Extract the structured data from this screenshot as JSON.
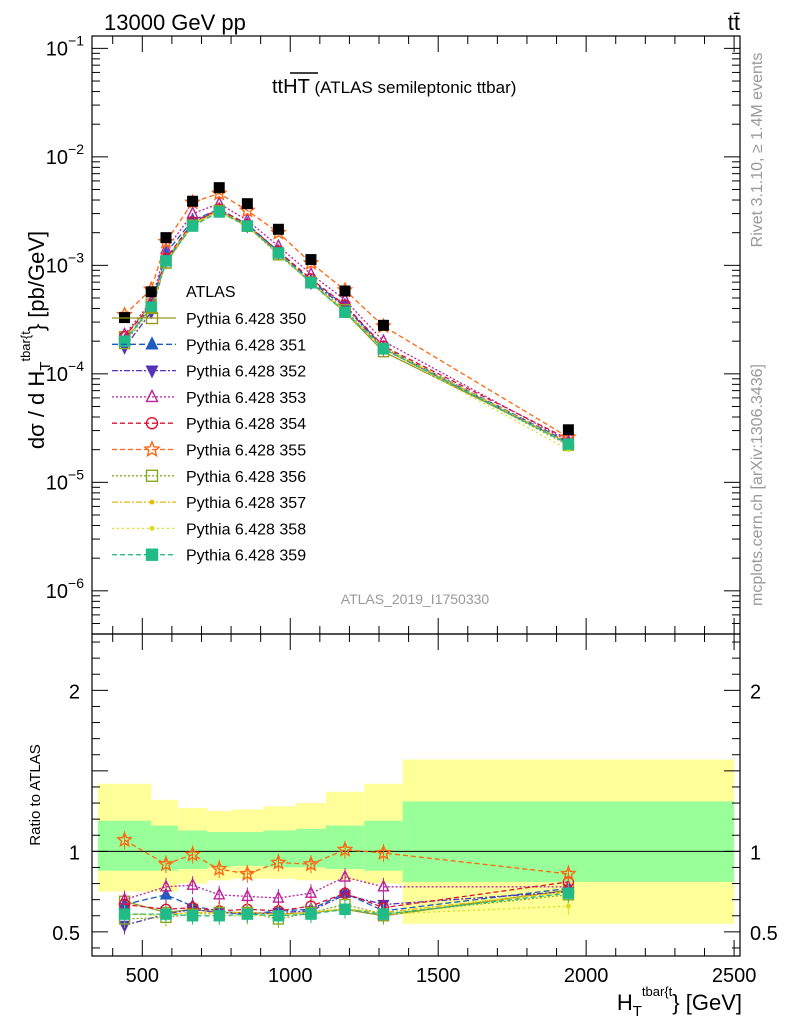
{
  "header": {
    "beam": "13000 GeV pp",
    "process": "tt̄",
    "title_main": "tt",
    "title_over": "HT",
    "title_rest": " (ATLAS semileptonic ttbar)",
    "analysis_id": "ATLAS_2019_I1750330",
    "side_top": "Rivet 3.1.10, ≥ 1.4M events",
    "side_bottom": "mcplots.cern.ch [arXiv:1306.3436]"
  },
  "colors": {
    "data": "#000000",
    "band_outer": "#ffff99",
    "band_inner": "#99ff99"
  },
  "chart_data": [
    {
      "type": "line",
      "panel": "main",
      "ylabel_main": "dσ / d H",
      "ylabel_sup": "tbar{t",
      "ylabel_sub": "T",
      "ylabel_unit": "} [pb/GeV]",
      "yscale": "log",
      "ylim": [
        4e-07,
        0.13
      ],
      "xlim": [
        330,
        2520
      ],
      "ytick_labels": [
        {
          "value": 1e-06,
          "base": "10",
          "exp": "−6"
        },
        {
          "value": 1e-05,
          "base": "10",
          "exp": "−5"
        },
        {
          "value": 0.0001,
          "base": "10",
          "exp": "−4"
        },
        {
          "value": 0.001,
          "base": "10",
          "exp": "−3"
        },
        {
          "value": 0.01,
          "base": "10",
          "exp": "−2"
        },
        {
          "value": 0.1,
          "base": "10",
          "exp": "−1"
        }
      ],
      "legend_position": "center-left",
      "x": [
        440,
        530,
        580,
        670,
        760,
        855,
        960,
        1070,
        1185,
        1315,
        1940
      ],
      "data": {
        "name": "ATLAS",
        "values": [
          0.00033,
          0.00057,
          0.0018,
          0.0039,
          0.0052,
          0.0037,
          0.00215,
          0.00113,
          0.00058,
          0.00028,
          3.05e-05
        ]
      },
      "series": [
        {
          "name": "Pythia 6.428 350",
          "color": "#99991f",
          "dash": "solid",
          "marker": "square-open",
          "values": [
            0.00022,
            0.00044,
            0.00105,
            0.0024,
            0.0032,
            0.0023,
            0.0013,
            0.00069,
            0.00037,
            0.00016,
            2.3e-05
          ]
        },
        {
          "name": "Pythia 6.428 351",
          "color": "#1f5cbf",
          "dash": "6,3",
          "marker": "triangle-up",
          "values": [
            0.0002,
            0.00042,
            0.0013,
            0.0026,
            0.0033,
            0.0024,
            0.00135,
            0.00072,
            0.00043,
            0.000175,
            2.35e-05
          ]
        },
        {
          "name": "Pythia 6.428 352",
          "color": "#5533bb",
          "dash": "6,2,2,2",
          "marker": "triangle-down",
          "values": [
            0.000175,
            0.00037,
            0.0011,
            0.0025,
            0.0032,
            0.0023,
            0.0013,
            0.00069,
            0.00042,
            0.00017,
            2.3e-05
          ]
        },
        {
          "name": "Pythia 6.428 353",
          "color": "#bb2299",
          "dash": "2,2",
          "marker": "triangle-open",
          "values": [
            0.00023,
            0.00046,
            0.0014,
            0.003,
            0.0037,
            0.0026,
            0.0015,
            0.00083,
            0.00048,
            0.0002,
            2.4e-05
          ]
        },
        {
          "name": "Pythia 6.428 354",
          "color": "#dd1133",
          "dash": "5,3",
          "marker": "circle-open",
          "values": [
            0.00022,
            0.00043,
            0.00115,
            0.0025,
            0.0033,
            0.00235,
            0.00135,
            0.00075,
            0.00043,
            0.00018,
            2.5e-05
          ]
        },
        {
          "name": "Pythia 6.428 355",
          "color": "#ff6611",
          "dash": "5,3",
          "marker": "star-open",
          "values": [
            0.00035,
            0.0006,
            0.00165,
            0.0038,
            0.0046,
            0.0032,
            0.002,
            0.00105,
            0.00059,
            0.000275,
            2.6e-05
          ]
        },
        {
          "name": "Pythia 6.428 356",
          "color": "#88aa22",
          "dash": "2,2",
          "marker": "square-open",
          "values": [
            0.00019,
            0.0004,
            0.00105,
            0.00235,
            0.0032,
            0.0023,
            0.00125,
            0.0007,
            0.00039,
            0.00017,
            2.2e-05
          ]
        },
        {
          "name": "Pythia 6.428 357",
          "color": "#e6bb11",
          "dash": "6,2,2,2",
          "marker": "dot",
          "values": [
            0.0002,
            0.00041,
            0.0011,
            0.0024,
            0.0032,
            0.0023,
            0.0013,
            0.0007,
            0.00037,
            0.000175,
            2.3e-05
          ]
        },
        {
          "name": "Pythia 6.428 358",
          "color": "#dddd22",
          "dash": "2,3",
          "marker": "dot",
          "values": [
            0.0002,
            0.0004,
            0.0011,
            0.0024,
            0.0031,
            0.00225,
            0.0013,
            0.0007,
            0.00038,
            0.00017,
            2e-05
          ]
        },
        {
          "name": "Pythia 6.428 359",
          "color": "#22bb88",
          "dash": "5,3",
          "marker": "square",
          "values": [
            0.0002,
            0.00041,
            0.0011,
            0.0023,
            0.0031,
            0.0023,
            0.0013,
            0.00069,
            0.00037,
            0.00017,
            2.25e-05
          ]
        }
      ]
    },
    {
      "type": "line",
      "panel": "ratio",
      "ylabel": "Ratio to ATLAS",
      "ylim": [
        0.35,
        2.35
      ],
      "xlim": [
        330,
        2520
      ],
      "yticks": [
        0.5,
        1,
        2
      ],
      "ytick_labels": [
        "0.5",
        "1",
        "2"
      ],
      "xticks": [
        500,
        1000,
        1500,
        2000,
        2500
      ],
      "xtick_labels": [
        "500",
        "1000",
        "1500",
        "2000",
        "2500"
      ],
      "xlabel_main": "H",
      "xlabel_sup": "tbar{t",
      "xlabel_sub": "T",
      "xlabel_unit": "} [GeV]",
      "bands": {
        "edges": [
          350,
          530,
          620,
          720,
          800,
          910,
          1020,
          1120,
          1250,
          1380,
          2500
        ],
        "outer_low": [
          0.75,
          0.75,
          0.8,
          0.82,
          0.83,
          0.83,
          0.82,
          0.82,
          0.8,
          0.55
        ],
        "outer_high": [
          1.42,
          1.32,
          1.27,
          1.25,
          1.26,
          1.28,
          1.3,
          1.37,
          1.42,
          1.57
        ],
        "inner_low": [
          0.88,
          0.88,
          0.89,
          0.9,
          0.91,
          0.9,
          0.9,
          0.89,
          0.88,
          0.81
        ],
        "inner_high": [
          1.19,
          1.16,
          1.13,
          1.12,
          1.12,
          1.13,
          1.14,
          1.16,
          1.19,
          1.31
        ]
      },
      "x": [
        440,
        580,
        670,
        760,
        855,
        960,
        1070,
        1185,
        1315,
        1940
      ],
      "series": [
        {
          "name": "Pythia 6.428 350",
          "values": [
            0.69,
            0.62,
            0.64,
            0.62,
            0.62,
            0.61,
            0.62,
            0.64,
            0.6,
            0.76
          ]
        },
        {
          "name": "Pythia 6.428 351",
          "values": [
            0.67,
            0.73,
            0.66,
            0.63,
            0.61,
            0.63,
            0.64,
            0.74,
            0.63,
            0.77
          ]
        },
        {
          "name": "Pythia 6.428 352",
          "values": [
            0.54,
            0.61,
            0.64,
            0.62,
            0.61,
            0.62,
            0.63,
            0.73,
            0.67,
            0.75
          ]
        },
        {
          "name": "Pythia 6.428 353",
          "values": [
            0.7,
            0.78,
            0.79,
            0.73,
            0.72,
            0.71,
            0.74,
            0.84,
            0.78,
            0.78
          ]
        },
        {
          "name": "Pythia 6.428 354",
          "values": [
            0.67,
            0.64,
            0.65,
            0.63,
            0.64,
            0.63,
            0.66,
            0.74,
            0.65,
            0.81
          ]
        },
        {
          "name": "Pythia 6.428 355",
          "values": [
            1.07,
            0.92,
            0.98,
            0.89,
            0.86,
            0.93,
            0.92,
            1.01,
            0.99,
            0.86
          ]
        },
        {
          "name": "Pythia 6.428 356",
          "values": [
            0.58,
            0.59,
            0.61,
            0.62,
            0.62,
            0.58,
            0.62,
            0.67,
            0.61,
            0.73
          ]
        },
        {
          "name": "Pythia 6.428 357",
          "values": [
            0.61,
            0.61,
            0.62,
            0.62,
            0.62,
            0.61,
            0.62,
            0.64,
            0.62,
            0.75
          ]
        },
        {
          "name": "Pythia 6.428 358",
          "values": [
            0.61,
            0.6,
            0.62,
            0.6,
            0.6,
            0.6,
            0.62,
            0.65,
            0.61,
            0.66
          ]
        },
        {
          "name": "Pythia 6.428 359",
          "values": [
            0.61,
            0.61,
            0.6,
            0.6,
            0.61,
            0.6,
            0.61,
            0.64,
            0.61,
            0.74
          ]
        }
      ]
    }
  ]
}
